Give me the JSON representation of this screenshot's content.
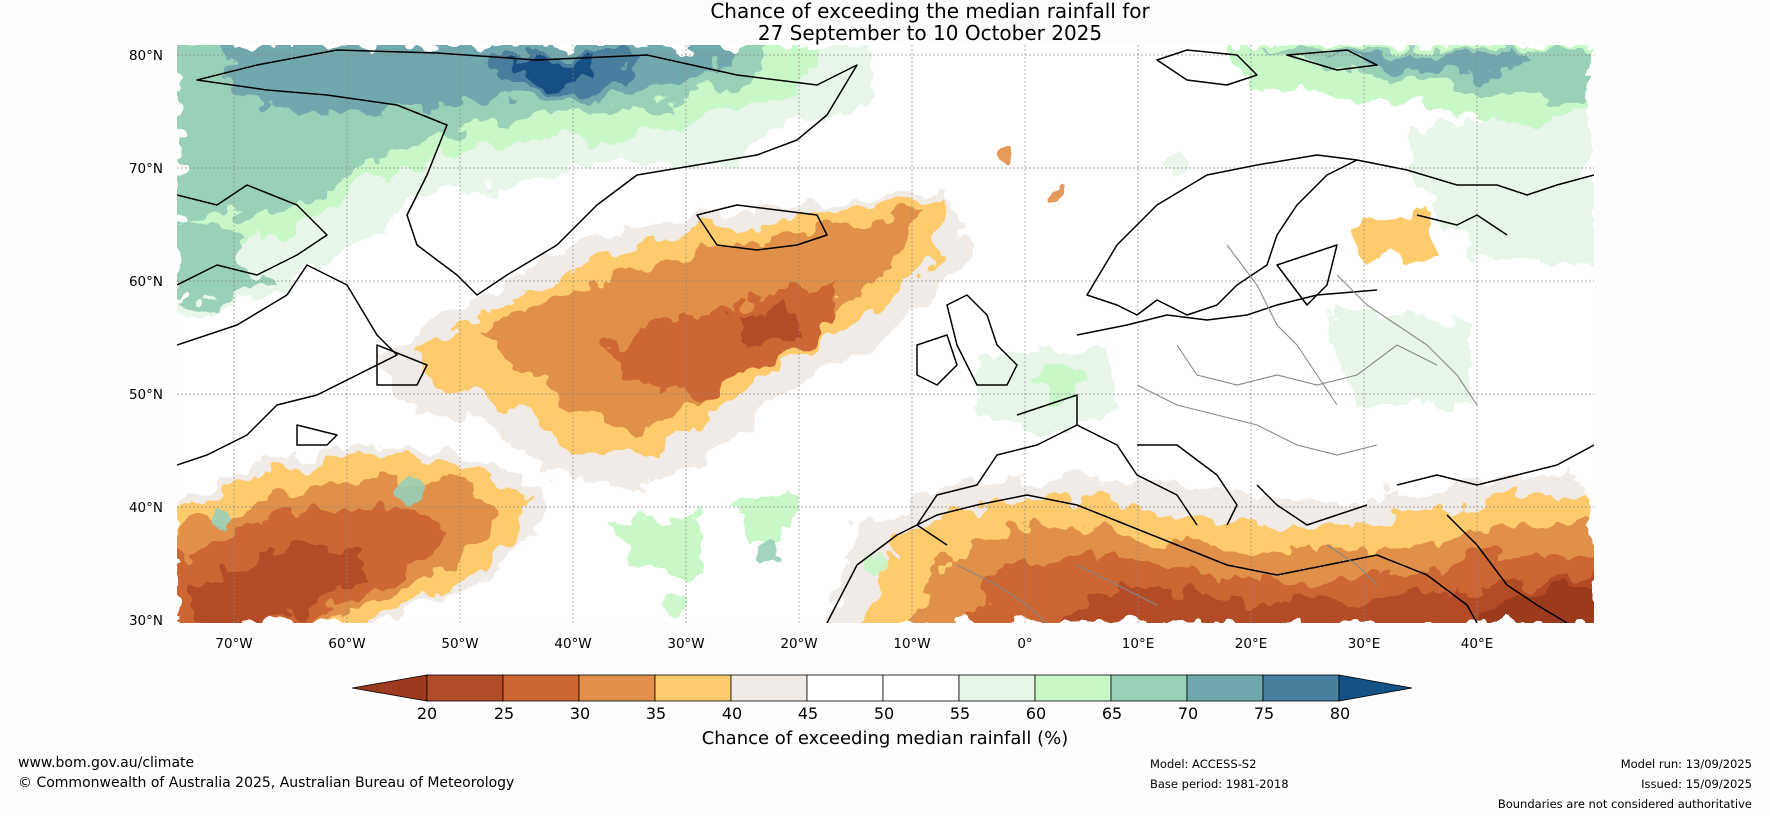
{
  "title": {
    "line1": "Chance of exceeding the median rainfall for",
    "line2": "27 September to 10 October 2025"
  },
  "map": {
    "lat_labels": [
      "80°N",
      "70°N",
      "60°N",
      "50°N",
      "40°N",
      "30°N"
    ],
    "lon_labels": [
      "70°W",
      "60°W",
      "50°W",
      "40°W",
      "30°W",
      "20°W",
      "10°W",
      "0°",
      "10°E",
      "20°E",
      "30°E",
      "40°E"
    ],
    "ocean_fill": "#ffffff",
    "coast_color": "#000000",
    "border_color": "#888888"
  },
  "colorbar": {
    "ticks": [
      "20",
      "25",
      "30",
      "35",
      "40",
      "45",
      "50",
      "55",
      "60",
      "65",
      "70",
      "75",
      "80"
    ],
    "colors": [
      "#9c3a1f",
      "#b24c28",
      "#cc6633",
      "#e0904a",
      "#fdcb6c",
      "#f0ebe6",
      "#ffffff",
      "#ffffff",
      "#e8f5e9",
      "#c8f7c8",
      "#98d0b8",
      "#70a8ae",
      "#4a7f9e",
      "#155084"
    ],
    "label": "Chance of exceeding median rainfall (%)"
  },
  "footer": {
    "website": "www.bom.gov.au/climate",
    "copyright": "© Commonwealth of Australia 2025, Australian Bureau of Meteorology",
    "model": "Model: ACCESS-S2",
    "base_period": "Base period: 1981-2018",
    "model_run": "Model run: 13/09/2025",
    "issued": "Issued: 15/09/2025",
    "disclaimer": "Boundaries are not considered authoritative"
  }
}
